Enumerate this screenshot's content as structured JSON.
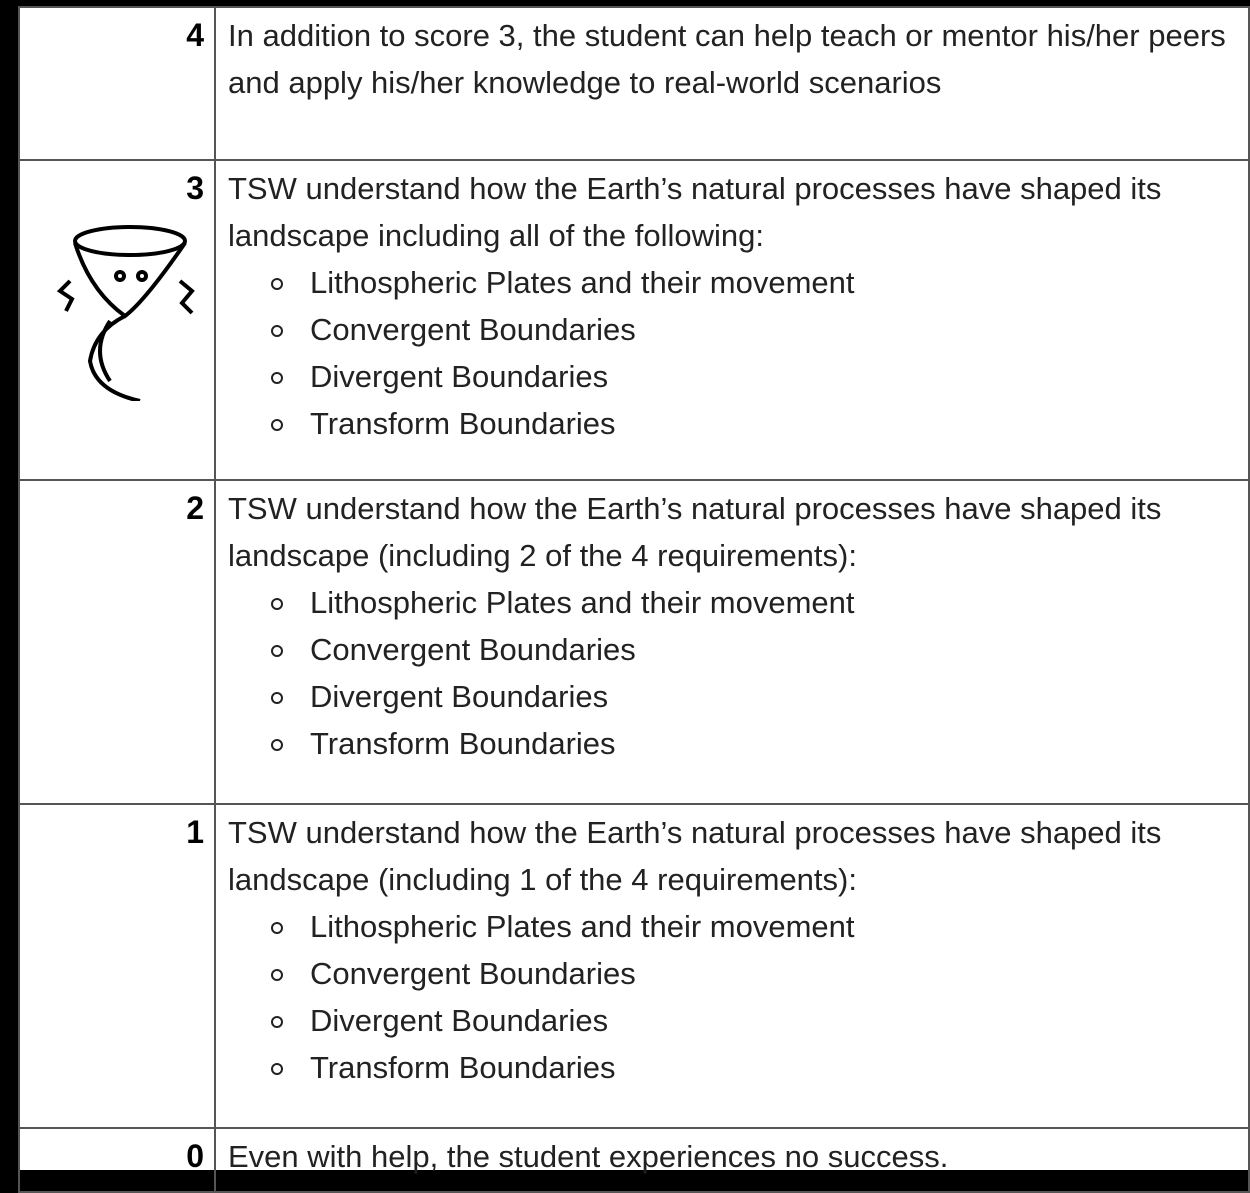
{
  "table": {
    "rows": [
      {
        "score": "4",
        "text": "In addition to score 3, the student can help teach or mentor his/her peers and apply his/her knowledge to real-world scenarios",
        "items": []
      },
      {
        "score": "3",
        "text": "TSW understand how the Earth’s natural processes have shaped its landscape including all of the following:",
        "items": [
          "Lithospheric Plates and their movement",
          "Convergent Boundaries",
          "Divergent Boundaries",
          "Transform Boundaries"
        ]
      },
      {
        "score": "2",
        "text": "TSW understand how the Earth’s natural processes have shaped its landscape (including 2 of the 4 requirements):",
        "items": [
          "Lithospheric Plates and their movement",
          "Convergent Boundaries",
          "Divergent Boundaries",
          "Transform Boundaries"
        ]
      },
      {
        "score": "1",
        "text": "TSW understand how the Earth’s natural processes have shaped its landscape (including 1 of the 4 requirements):",
        "items": [
          "Lithospheric Plates and their movement",
          "Convergent Boundaries",
          "Divergent Boundaries",
          "Transform Boundaries"
        ]
      },
      {
        "score": "0",
        "text": "Even with help, the student experiences no success.",
        "items": []
      }
    ]
  }
}
